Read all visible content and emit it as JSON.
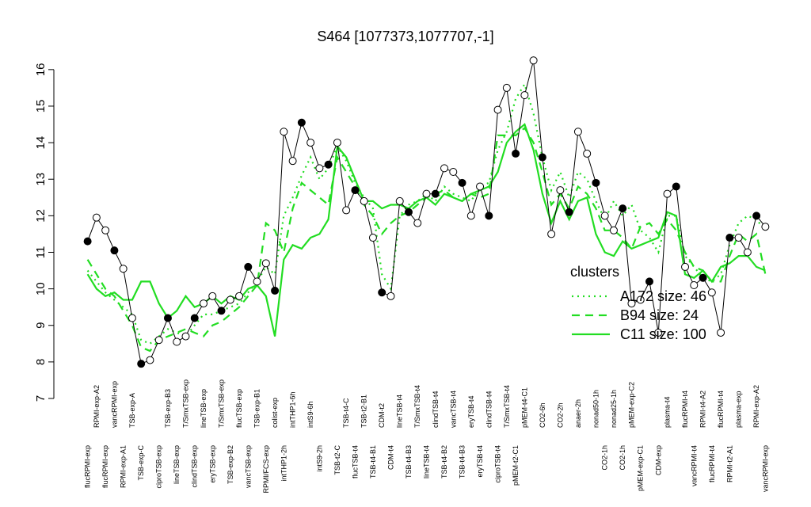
{
  "chart_data": {
    "type": "line",
    "title": "S464 [1077373,1077707,-1]",
    "ylim": [
      7,
      16.3
    ],
    "yticks": [
      7,
      8,
      9,
      10,
      11,
      12,
      13,
      14,
      15,
      16
    ],
    "line_color": "#000000",
    "legend_title": "clusters",
    "legend_position": "right",
    "categories": [
      "flucRPMI-exp",
      "RPMI-exp-A2",
      "flucRPMI-exp",
      "vancRPMI-exp",
      "RPMI-exp-A1",
      "TSB-exp-A",
      "TSB-exp-C",
      null,
      "ciproTSB-exp",
      "TSB-exp-B3",
      "lineTSB-exp",
      "T/SmxTSB-exp",
      "clindTSB-exp",
      "lineTSB-exp",
      "eryTSB-exp",
      "T/SmxTSB-exp",
      "TSB-exp-B2",
      "flucTSB-exp",
      "vancTSB-exp",
      "TSB-exp-B1",
      "RPMI/FCS-exp",
      "colist-exp",
      "intTHP1-2h",
      "intTHP1-6h",
      null,
      "intS9-6h",
      "intS9-2h",
      null,
      "TSB-t2-C",
      "TSB-t4-C",
      "flucTSB-t4",
      "TSB-t2-B1",
      "TSB-t4-B1",
      "CDM-t2",
      "CDM-t4",
      "lineTSB-t4",
      "TSB-t4-B3",
      "T/SmxTSB-t4",
      "lineTSB-t4",
      "clindTSB-t4",
      "TSB-t4-B2",
      "vancTSB-t4",
      "TSB-t4-B3",
      "eryTSB-t4",
      "eryTSB-t4",
      "clindTSB-t4",
      "ciproTSB-t4",
      "T/SmxTSB-t4",
      "pMEM-t2-C1",
      "pMEM-t4-C1",
      null,
      "CO2-6h",
      null,
      "CO2-2h",
      null,
      "anaer-2h",
      null,
      "nonad50-1h",
      "CO2-1h",
      "nonad25-1h",
      "CO2-1h",
      "pMEM-exp-C2",
      "pMEM-exp-C1",
      null,
      "CDM-exp",
      "plasma-t4",
      null,
      "flucRPMI-t4",
      "vancRPMI-t4",
      "RPMI-t4-A2",
      "flucRPMI-t4",
      "flucRPMI-t4",
      "RPMI-t2-A1",
      "plasma-exp",
      null,
      "RPMI-exp-A2",
      "vancRPMI-exp"
    ],
    "values": [
      11.3,
      11.95,
      11.6,
      11.05,
      10.55,
      9.2,
      7.95,
      8.05,
      8.6,
      9.2,
      8.55,
      8.7,
      9.2,
      9.6,
      9.8,
      9.4,
      9.7,
      9.8,
      10.6,
      10.2,
      10.7,
      9.95,
      14.3,
      13.5,
      14.55,
      14.0,
      13.3,
      13.4,
      14.0,
      12.15,
      12.7,
      12.4,
      11.4,
      9.9,
      9.8,
      12.4,
      12.1,
      11.8,
      12.6,
      12.6,
      13.3,
      13.2,
      12.9,
      12.0,
      12.8,
      12.0,
      14.9,
      15.5,
      13.7,
      15.3,
      16.25,
      13.6,
      11.5,
      12.7,
      12.1,
      14.3,
      13.7,
      12.9,
      12.0,
      11.6,
      12.2,
      9.6,
      9.7,
      10.2,
      8.8,
      12.6,
      12.8,
      10.6,
      10.1,
      10.3,
      9.9,
      8.8,
      11.4,
      11.4,
      11.0,
      12.0,
      11.7
    ],
    "series": [
      {
        "name": "A172 size: 46",
        "color": "#22dd22",
        "style": "dotted",
        "values": [
          10.5,
          10.2,
          9.9,
          9.7,
          9.5,
          9.3,
          8.6,
          8.5,
          8.7,
          8.9,
          8.8,
          8.7,
          9.0,
          9.3,
          9.3,
          9.4,
          9.5,
          9.6,
          9.9,
          10.2,
          10.6,
          10.4,
          12.0,
          12.5,
          13.1,
          13.6,
          13.0,
          13.3,
          13.9,
          13.5,
          12.9,
          12.5,
          12.2,
          10.4,
          10.0,
          12.0,
          12.3,
          12.4,
          12.6,
          12.4,
          12.8,
          12.6,
          12.5,
          12.4,
          12.8,
          12.9,
          13.8,
          14.3,
          15.2,
          15.6,
          14.8,
          13.6,
          12.7,
          13.2,
          12.5,
          13.2,
          13.0,
          12.4,
          11.9,
          12.4,
          12.0,
          12.3,
          11.6,
          11.4,
          11.0,
          12.0,
          12.0,
          10.9,
          10.6,
          10.3,
          10.2,
          10.4,
          11.2,
          11.8,
          12.0,
          11.9,
          11.6
        ]
      },
      {
        "name": "B94 size: 24",
        "color": "#22dd22",
        "style": "dashed",
        "values": [
          10.8,
          10.4,
          10.0,
          9.8,
          9.4,
          9.0,
          8.4,
          8.3,
          8.6,
          8.7,
          8.8,
          8.9,
          8.8,
          8.7,
          9.0,
          9.1,
          9.3,
          9.5,
          9.8,
          10.1,
          11.8,
          11.6,
          11.0,
          12.2,
          12.9,
          12.7,
          12.5,
          12.3,
          13.6,
          13.2,
          12.8,
          12.3,
          12.0,
          11.5,
          11.8,
          12.0,
          12.1,
          12.3,
          12.5,
          12.6,
          12.7,
          12.5,
          12.4,
          12.6,
          12.5,
          12.6,
          14.2,
          14.2,
          14.2,
          14.4,
          14.0,
          13.2,
          12.3,
          12.6,
          12.2,
          12.8,
          12.6,
          12.2,
          11.6,
          11.6,
          11.4,
          11.1,
          11.7,
          11.8,
          11.5,
          11.9,
          11.6,
          11.0,
          10.6,
          10.5,
          10.2,
          10.2,
          10.9,
          11.5,
          11.3,
          11.5,
          10.4
        ]
      },
      {
        "name": "C11 size: 100",
        "color": "#22dd22",
        "style": "solid",
        "values": [
          10.4,
          10.0,
          9.8,
          9.9,
          9.7,
          9.7,
          10.2,
          10.2,
          9.6,
          9.2,
          9.4,
          9.8,
          9.5,
          9.6,
          9.8,
          9.6,
          9.8,
          9.7,
          10.0,
          10.1,
          9.8,
          8.7,
          10.8,
          11.2,
          11.1,
          11.4,
          11.5,
          11.9,
          13.9,
          13.6,
          13.0,
          12.4,
          12.4,
          12.2,
          12.3,
          12.3,
          12.2,
          12.4,
          12.5,
          12.3,
          12.6,
          12.5,
          12.4,
          12.6,
          12.7,
          12.8,
          13.2,
          14.0,
          14.3,
          14.5,
          13.8,
          12.6,
          11.8,
          12.4,
          11.9,
          12.4,
          12.5,
          11.5,
          11.0,
          10.9,
          11.3,
          11.1,
          11.2,
          11.3,
          11.4,
          12.1,
          12.0,
          10.4,
          10.3,
          10.5,
          10.2,
          10.6,
          10.7,
          10.9,
          10.9,
          10.6,
          10.5
        ]
      }
    ]
  }
}
